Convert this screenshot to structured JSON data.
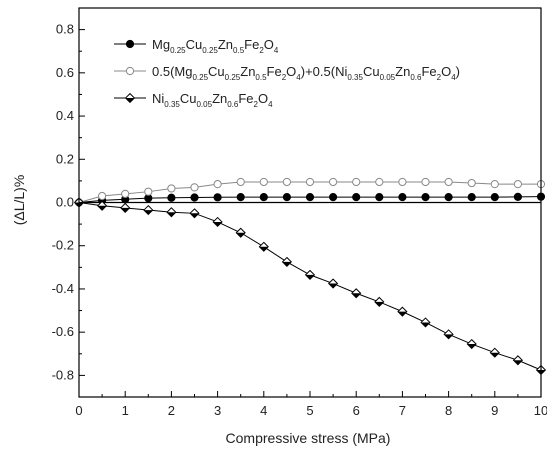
{
  "chart_data": {
    "type": "line",
    "title": "",
    "xlabel": "Compressive stress (MPa)",
    "ylabel": "(ΔL/L)%",
    "xlim": [
      0,
      10
    ],
    "ylim": [
      -0.9,
      0.9
    ],
    "x_ticks": [
      0,
      1,
      2,
      3,
      4,
      5,
      6,
      7,
      8,
      9,
      10
    ],
    "y_ticks": [
      0.8,
      0.6,
      0.4,
      0.2,
      0.0,
      -0.2,
      -0.4,
      -0.6,
      -0.8
    ],
    "y_tick_labels": [
      "0.8",
      "0.6",
      "0.4",
      "0.2",
      "0.0",
      "-0.2",
      "-0.4",
      "-0.6",
      "-0.8"
    ],
    "grid": false,
    "legend_position": "top-left",
    "x": [
      0,
      0.5,
      1,
      1.5,
      2,
      2.5,
      3,
      3.5,
      4,
      4.5,
      5,
      5.5,
      6,
      6.5,
      7,
      7.5,
      8,
      8.5,
      9,
      9.5,
      10
    ],
    "series": [
      {
        "name": "Mg0.25Cu0.25Zn0.5Fe2O4",
        "marker": "filled-circle",
        "color": "#000000",
        "values": [
          0.0,
          0.01,
          0.015,
          0.02,
          0.022,
          0.023,
          0.024,
          0.025,
          0.025,
          0.025,
          0.025,
          0.025,
          0.025,
          0.025,
          0.025,
          0.025,
          0.025,
          0.025,
          0.025,
          0.026,
          0.027
        ]
      },
      {
        "name": "0.5(Mg0.25Cu0.25Zn0.5Fe2O4)+0.5(Ni0.35Cu0.05Zn0.6Fe2O4)",
        "marker": "open-circle",
        "color": "#888888",
        "values": [
          0.0,
          0.03,
          0.04,
          0.05,
          0.065,
          0.07,
          0.085,
          0.095,
          0.095,
          0.095,
          0.095,
          0.095,
          0.095,
          0.095,
          0.095,
          0.095,
          0.095,
          0.09,
          0.085,
          0.085,
          0.085
        ]
      },
      {
        "name": "Ni0.35Cu0.05Zn0.6Fe2O4",
        "marker": "half-filled-diamond",
        "color": "#000000",
        "values": [
          0.0,
          -0.015,
          -0.025,
          -0.035,
          -0.045,
          -0.05,
          -0.09,
          -0.14,
          -0.205,
          -0.275,
          -0.335,
          -0.375,
          -0.42,
          -0.46,
          -0.505,
          -0.555,
          -0.61,
          -0.655,
          -0.695,
          -0.73,
          -0.775
        ]
      }
    ],
    "legend_rich": [
      [
        {
          "t": "Mg",
          "s": false
        },
        {
          "t": "0.25",
          "s": true
        },
        {
          "t": "Cu",
          "s": false
        },
        {
          "t": "0.25",
          "s": true
        },
        {
          "t": "Zn",
          "s": false
        },
        {
          "t": "0.5",
          "s": true
        },
        {
          "t": "Fe",
          "s": false
        },
        {
          "t": "2",
          "s": true
        },
        {
          "t": "O",
          "s": false
        },
        {
          "t": "4",
          "s": true
        }
      ],
      [
        {
          "t": "0.5(Mg",
          "s": false
        },
        {
          "t": "0.25",
          "s": true
        },
        {
          "t": "Cu",
          "s": false
        },
        {
          "t": "0.25",
          "s": true
        },
        {
          "t": "Zn",
          "s": false
        },
        {
          "t": "0.5",
          "s": true
        },
        {
          "t": "Fe",
          "s": false
        },
        {
          "t": "2",
          "s": true
        },
        {
          "t": "O",
          "s": false
        },
        {
          "t": "4",
          "s": true
        },
        {
          "t": ")+0.5(Ni",
          "s": false
        },
        {
          "t": "0.35",
          "s": true
        },
        {
          "t": "Cu",
          "s": false
        },
        {
          "t": "0.05",
          "s": true
        },
        {
          "t": "Zn",
          "s": false
        },
        {
          "t": "0.6",
          "s": true
        },
        {
          "t": "Fe",
          "s": false
        },
        {
          "t": "2",
          "s": true
        },
        {
          "t": "O",
          "s": false
        },
        {
          "t": "4",
          "s": true
        },
        {
          "t": ")",
          "s": false
        }
      ],
      [
        {
          "t": "Ni",
          "s": false
        },
        {
          "t": "0.35",
          "s": true
        },
        {
          "t": "Cu",
          "s": false
        },
        {
          "t": "0.05",
          "s": true
        },
        {
          "t": "Zn",
          "s": false
        },
        {
          "t": "0.6",
          "s": true
        },
        {
          "t": "Fe",
          "s": false
        },
        {
          "t": "2",
          "s": true
        },
        {
          "t": "O",
          "s": false
        },
        {
          "t": "4",
          "s": true
        }
      ]
    ]
  }
}
